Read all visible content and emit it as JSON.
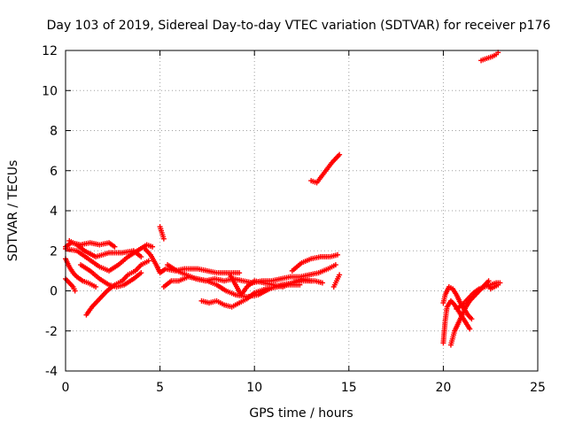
{
  "chart_data": {
    "type": "scatter",
    "title": "Day 103 of 2019, Sidereal Day-to-day VTEC variation (SDTVAR) for receiver p176",
    "xlabel": "GPS time / hours",
    "ylabel": "SDTVAR / TECUs",
    "xlim": [
      0,
      25
    ],
    "ylim": [
      -4,
      12
    ],
    "xticks": [
      "0",
      "5",
      "10",
      "15",
      "20",
      "25"
    ],
    "yticks": [
      "-4",
      "-2",
      "0",
      "2",
      "4",
      "6",
      "8",
      "10",
      "12"
    ],
    "grid": true,
    "marker": "plus",
    "color": "#ff0000",
    "series": [
      {
        "segments": [
          [
            [
              0.0,
              2.2
            ],
            [
              0.3,
              2.4
            ],
            [
              0.8,
              2.3
            ],
            [
              1.3,
              2.4
            ],
            [
              1.8,
              2.3
            ],
            [
              2.3,
              2.4
            ],
            [
              2.6,
              2.2
            ]
          ],
          [
            [
              0.0,
              2.1
            ],
            [
              0.6,
              2.0
            ],
            [
              1.2,
              1.6
            ],
            [
              1.8,
              1.2
            ],
            [
              2.3,
              1.0
            ],
            [
              2.8,
              1.3
            ],
            [
              3.3,
              1.7
            ],
            [
              3.8,
              2.0
            ],
            [
              4.3,
              2.3
            ],
            [
              4.6,
              2.2
            ]
          ],
          [
            [
              0.0,
              1.6
            ],
            [
              0.2,
              1.2
            ],
            [
              0.4,
              0.9
            ],
            [
              0.6,
              0.7
            ],
            [
              0.9,
              0.5
            ],
            [
              1.2,
              0.4
            ],
            [
              1.6,
              0.2
            ]
          ],
          [
            [
              0.0,
              0.6
            ],
            [
              0.2,
              0.4
            ],
            [
              0.4,
              0.2
            ],
            [
              0.5,
              0.0
            ]
          ],
          [
            [
              0.2,
              2.5
            ],
            [
              0.6,
              2.3
            ],
            [
              1.0,
              2.0
            ],
            [
              1.6,
              1.7
            ],
            [
              2.3,
              1.9
            ],
            [
              3.0,
              1.9
            ],
            [
              3.6,
              2.0
            ],
            [
              4.0,
              1.7
            ]
          ],
          [
            [
              1.1,
              -1.2
            ],
            [
              1.4,
              -0.8
            ],
            [
              1.8,
              -0.4
            ],
            [
              2.2,
              0.0
            ],
            [
              2.6,
              0.3
            ],
            [
              3.0,
              0.5
            ],
            [
              3.3,
              0.8
            ],
            [
              3.7,
              1.0
            ],
            [
              4.0,
              1.3
            ],
            [
              4.4,
              1.5
            ]
          ],
          [
            [
              0.8,
              1.3
            ],
            [
              1.3,
              1.0
            ],
            [
              1.8,
              0.6
            ],
            [
              2.3,
              0.3
            ],
            [
              2.7,
              0.2
            ],
            [
              3.1,
              0.3
            ],
            [
              3.6,
              0.6
            ],
            [
              4.0,
              0.9
            ]
          ],
          [
            [
              4.2,
              2.1
            ],
            [
              4.5,
              1.8
            ],
            [
              4.8,
              1.3
            ],
            [
              5.0,
              0.9
            ],
            [
              5.3,
              1.1
            ],
            [
              5.8,
              1.0
            ],
            [
              6.3,
              1.1
            ],
            [
              7.0,
              1.1
            ],
            [
              7.5,
              1.0
            ],
            [
              8.0,
              0.9
            ],
            [
              8.6,
              0.9
            ],
            [
              9.2,
              0.9
            ]
          ],
          [
            [
              5.0,
              3.2
            ],
            [
              5.1,
              2.9
            ],
            [
              5.2,
              2.6
            ]
          ],
          [
            [
              5.2,
              0.2
            ],
            [
              5.6,
              0.5
            ],
            [
              6.0,
              0.5
            ],
            [
              6.5,
              0.7
            ],
            [
              7.0,
              0.6
            ],
            [
              7.5,
              0.5
            ],
            [
              8.0,
              0.3
            ],
            [
              8.5,
              0.0
            ],
            [
              9.0,
              -0.2
            ],
            [
              9.6,
              -0.3
            ],
            [
              10.2,
              -0.2
            ],
            [
              10.8,
              0.1
            ],
            [
              11.4,
              0.3
            ],
            [
              12.0,
              0.4
            ],
            [
              12.6,
              0.5
            ],
            [
              13.2,
              0.5
            ],
            [
              13.6,
              0.4
            ]
          ],
          [
            [
              5.4,
              1.3
            ],
            [
              5.9,
              1.0
            ],
            [
              6.4,
              0.8
            ],
            [
              6.9,
              0.6
            ],
            [
              7.4,
              0.5
            ],
            [
              7.9,
              0.6
            ],
            [
              8.4,
              0.5
            ],
            [
              8.9,
              0.6
            ],
            [
              9.4,
              0.5
            ],
            [
              9.9,
              0.4
            ],
            [
              10.4,
              0.5
            ],
            [
              10.9,
              0.5
            ],
            [
              11.4,
              0.6
            ],
            [
              11.9,
              0.7
            ],
            [
              12.4,
              0.7
            ],
            [
              12.9,
              0.8
            ],
            [
              13.4,
              0.9
            ],
            [
              13.9,
              1.1
            ],
            [
              14.3,
              1.3
            ]
          ],
          [
            [
              7.2,
              -0.5
            ],
            [
              7.6,
              -0.6
            ],
            [
              8.0,
              -0.5
            ],
            [
              8.4,
              -0.7
            ],
            [
              8.8,
              -0.8
            ],
            [
              9.2,
              -0.6
            ],
            [
              9.6,
              -0.4
            ],
            [
              10.0,
              -0.1
            ],
            [
              10.6,
              0.1
            ],
            [
              11.2,
              0.2
            ],
            [
              11.8,
              0.3
            ],
            [
              12.4,
              0.3
            ]
          ],
          [
            [
              8.7,
              0.8
            ],
            [
              9.0,
              0.3
            ],
            [
              9.3,
              -0.2
            ],
            [
              9.6,
              0.2
            ],
            [
              10.0,
              0.5
            ],
            [
              10.5,
              0.4
            ],
            [
              11.0,
              0.3
            ],
            [
              11.5,
              0.2
            ],
            [
              12.0,
              0.4
            ],
            [
              12.5,
              0.6
            ],
            [
              13.0,
              0.5
            ]
          ],
          [
            [
              12.0,
              1.0
            ],
            [
              12.5,
              1.4
            ],
            [
              13.0,
              1.6
            ],
            [
              13.5,
              1.7
            ],
            [
              14.0,
              1.7
            ],
            [
              14.4,
              1.8
            ]
          ],
          [
            [
              14.2,
              0.2
            ],
            [
              14.3,
              0.4
            ],
            [
              14.4,
              0.6
            ],
            [
              14.5,
              0.8
            ]
          ],
          [
            [
              13.0,
              5.5
            ],
            [
              13.3,
              5.4
            ],
            [
              13.7,
              5.9
            ],
            [
              14.1,
              6.4
            ],
            [
              14.5,
              6.8
            ]
          ],
          [
            [
              20.0,
              -2.6
            ],
            [
              20.1,
              -1.5
            ],
            [
              20.2,
              -0.8
            ],
            [
              20.4,
              -0.5
            ],
            [
              20.6,
              -0.7
            ],
            [
              20.8,
              -1.0
            ],
            [
              21.0,
              -1.3
            ],
            [
              21.2,
              -1.6
            ],
            [
              21.4,
              -1.9
            ]
          ],
          [
            [
              20.0,
              -0.6
            ],
            [
              20.1,
              -0.2
            ],
            [
              20.3,
              0.2
            ],
            [
              20.5,
              0.1
            ],
            [
              20.7,
              -0.2
            ],
            [
              20.9,
              -0.6
            ],
            [
              21.1,
              -0.9
            ],
            [
              21.3,
              -1.2
            ],
            [
              21.5,
              -1.4
            ]
          ],
          [
            [
              20.4,
              -2.7
            ],
            [
              20.6,
              -2.0
            ],
            [
              20.8,
              -1.6
            ],
            [
              21.0,
              -1.2
            ],
            [
              21.2,
              -0.8
            ],
            [
              21.4,
              -0.5
            ],
            [
              21.6,
              -0.3
            ],
            [
              21.8,
              -0.1
            ],
            [
              22.0,
              0.1
            ],
            [
              22.2,
              0.3
            ],
            [
              22.4,
              0.5
            ]
          ],
          [
            [
              20.7,
              -0.9
            ],
            [
              21.0,
              -0.7
            ],
            [
              21.3,
              -0.4
            ],
            [
              21.6,
              -0.1
            ],
            [
              21.9,
              0.1
            ],
            [
              22.2,
              0.2
            ],
            [
              22.5,
              0.3
            ],
            [
              22.8,
              0.4
            ],
            [
              23.0,
              0.4
            ]
          ],
          [
            [
              22.4,
              0.3
            ],
            [
              22.5,
              0.1
            ],
            [
              22.7,
              0.2
            ],
            [
              22.9,
              0.3
            ]
          ],
          [
            [
              22.0,
              11.5
            ],
            [
              22.3,
              11.6
            ],
            [
              22.6,
              11.7
            ],
            [
              22.8,
              11.8
            ],
            [
              22.9,
              11.9
            ]
          ]
        ]
      }
    ]
  }
}
